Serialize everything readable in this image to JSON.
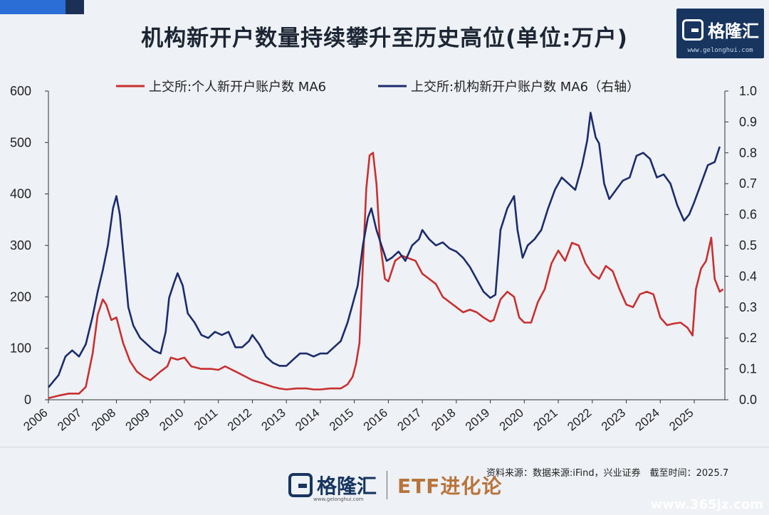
{
  "title": "机构新开户数量持续攀升至历史高位(单位:万户)",
  "brand": {
    "name": "格隆汇",
    "url": "www.gelonghui.com"
  },
  "footer": {
    "source": "资料来源：数据来源:iFind，兴业证券　截至时间：2025.7",
    "logo_name": "格隆汇",
    "logo_url": "www.gelonghui.com",
    "program": "ETF进化论",
    "watermark": "www.365jz.com"
  },
  "chart_data": {
    "type": "line",
    "x_categories": [
      "2006",
      "2007",
      "2008",
      "2009",
      "2010",
      "2011",
      "2012",
      "2013",
      "2014",
      "2015",
      "2016",
      "2017",
      "2018",
      "2019",
      "2020",
      "2021",
      "2022",
      "2023",
      "2024",
      "2025"
    ],
    "y_left": {
      "range": [
        0,
        600
      ],
      "ticks": [
        "0",
        "100",
        "200",
        "300",
        "400",
        "500",
        "600"
      ]
    },
    "y_right": {
      "range": [
        0,
        1.0
      ],
      "ticks": [
        "0.0",
        "0.1",
        "0.2",
        "0.3",
        "0.4",
        "0.5",
        "0.6",
        "0.7",
        "0.8",
        "0.9",
        "1.0"
      ]
    },
    "grid": false,
    "legend_position": "top",
    "colors": {
      "individual": "#c8302f",
      "institutional": "#1b2c6b"
    },
    "series": [
      {
        "name": "上交所:个人新开户账户数 MA6",
        "axis": "left",
        "points": [
          [
            2006.0,
            3
          ],
          [
            2006.3,
            8
          ],
          [
            2006.6,
            12
          ],
          [
            2006.9,
            12
          ],
          [
            2007.1,
            25
          ],
          [
            2007.3,
            90
          ],
          [
            2007.45,
            165
          ],
          [
            2007.6,
            195
          ],
          [
            2007.7,
            185
          ],
          [
            2007.85,
            155
          ],
          [
            2008.0,
            160
          ],
          [
            2008.2,
            110
          ],
          [
            2008.4,
            75
          ],
          [
            2008.6,
            55
          ],
          [
            2008.8,
            45
          ],
          [
            2009.0,
            38
          ],
          [
            2009.3,
            55
          ],
          [
            2009.5,
            65
          ],
          [
            2009.6,
            82
          ],
          [
            2009.8,
            78
          ],
          [
            2010.0,
            82
          ],
          [
            2010.2,
            65
          ],
          [
            2010.5,
            60
          ],
          [
            2010.8,
            60
          ],
          [
            2011.0,
            58
          ],
          [
            2011.2,
            65
          ],
          [
            2011.5,
            55
          ],
          [
            2011.8,
            45
          ],
          [
            2012.0,
            38
          ],
          [
            2012.3,
            32
          ],
          [
            2012.6,
            25
          ],
          [
            2012.8,
            22
          ],
          [
            2013.0,
            20
          ],
          [
            2013.3,
            22
          ],
          [
            2013.6,
            22
          ],
          [
            2013.8,
            20
          ],
          [
            2014.0,
            20
          ],
          [
            2014.3,
            22
          ],
          [
            2014.6,
            22
          ],
          [
            2014.8,
            30
          ],
          [
            2014.95,
            45
          ],
          [
            2015.05,
            70
          ],
          [
            2015.15,
            110
          ],
          [
            2015.25,
            260
          ],
          [
            2015.35,
            410
          ],
          [
            2015.45,
            475
          ],
          [
            2015.55,
            480
          ],
          [
            2015.65,
            420
          ],
          [
            2015.75,
            310
          ],
          [
            2015.9,
            235
          ],
          [
            2016.0,
            230
          ],
          [
            2016.2,
            270
          ],
          [
            2016.4,
            280
          ],
          [
            2016.6,
            275
          ],
          [
            2016.8,
            270
          ],
          [
            2017.0,
            245
          ],
          [
            2017.2,
            235
          ],
          [
            2017.4,
            225
          ],
          [
            2017.6,
            200
          ],
          [
            2017.8,
            190
          ],
          [
            2018.0,
            180
          ],
          [
            2018.2,
            170
          ],
          [
            2018.4,
            175
          ],
          [
            2018.6,
            170
          ],
          [
            2018.8,
            160
          ],
          [
            2019.0,
            152
          ],
          [
            2019.1,
            155
          ],
          [
            2019.3,
            195
          ],
          [
            2019.5,
            210
          ],
          [
            2019.7,
            200
          ],
          [
            2019.85,
            160
          ],
          [
            2020.0,
            150
          ],
          [
            2020.2,
            150
          ],
          [
            2020.4,
            190
          ],
          [
            2020.6,
            215
          ],
          [
            2020.8,
            265
          ],
          [
            2021.0,
            290
          ],
          [
            2021.2,
            270
          ],
          [
            2021.4,
            305
          ],
          [
            2021.6,
            300
          ],
          [
            2021.8,
            265
          ],
          [
            2022.0,
            245
          ],
          [
            2022.2,
            235
          ],
          [
            2022.4,
            260
          ],
          [
            2022.6,
            250
          ],
          [
            2022.8,
            215
          ],
          [
            2023.0,
            185
          ],
          [
            2023.2,
            180
          ],
          [
            2023.4,
            205
          ],
          [
            2023.6,
            210
          ],
          [
            2023.8,
            205
          ],
          [
            2024.0,
            160
          ],
          [
            2024.2,
            145
          ],
          [
            2024.4,
            148
          ],
          [
            2024.6,
            150
          ],
          [
            2024.8,
            140
          ],
          [
            2024.95,
            125
          ],
          [
            2025.05,
            215
          ],
          [
            2025.2,
            255
          ],
          [
            2025.35,
            270
          ],
          [
            2025.5,
            315
          ],
          [
            2025.6,
            235
          ],
          [
            2025.75,
            210
          ],
          [
            2025.85,
            215
          ]
        ]
      },
      {
        "name": "上交所:机构新开户账户数 MA6（右轴）",
        "axis": "right",
        "points": [
          [
            2006.0,
            0.04
          ],
          [
            2006.3,
            0.08
          ],
          [
            2006.5,
            0.14
          ],
          [
            2006.7,
            0.16
          ],
          [
            2006.9,
            0.14
          ],
          [
            2007.1,
            0.18
          ],
          [
            2007.3,
            0.27
          ],
          [
            2007.45,
            0.35
          ],
          [
            2007.6,
            0.42
          ],
          [
            2007.75,
            0.5
          ],
          [
            2007.9,
            0.62
          ],
          [
            2008.0,
            0.66
          ],
          [
            2008.1,
            0.6
          ],
          [
            2008.2,
            0.48
          ],
          [
            2008.35,
            0.3
          ],
          [
            2008.5,
            0.24
          ],
          [
            2008.7,
            0.2
          ],
          [
            2008.9,
            0.18
          ],
          [
            2009.1,
            0.16
          ],
          [
            2009.3,
            0.15
          ],
          [
            2009.45,
            0.22
          ],
          [
            2009.55,
            0.33
          ],
          [
            2009.7,
            0.38
          ],
          [
            2009.8,
            0.41
          ],
          [
            2009.95,
            0.37
          ],
          [
            2010.1,
            0.28
          ],
          [
            2010.3,
            0.25
          ],
          [
            2010.5,
            0.21
          ],
          [
            2010.7,
            0.2
          ],
          [
            2010.9,
            0.22
          ],
          [
            2011.1,
            0.21
          ],
          [
            2011.3,
            0.22
          ],
          [
            2011.5,
            0.17
          ],
          [
            2011.7,
            0.17
          ],
          [
            2011.9,
            0.19
          ],
          [
            2012.0,
            0.21
          ],
          [
            2012.2,
            0.18
          ],
          [
            2012.4,
            0.14
          ],
          [
            2012.6,
            0.12
          ],
          [
            2012.8,
            0.11
          ],
          [
            2013.0,
            0.11
          ],
          [
            2013.2,
            0.13
          ],
          [
            2013.4,
            0.15
          ],
          [
            2013.6,
            0.15
          ],
          [
            2013.8,
            0.14
          ],
          [
            2014.0,
            0.15
          ],
          [
            2014.2,
            0.15
          ],
          [
            2014.4,
            0.17
          ],
          [
            2014.6,
            0.19
          ],
          [
            2014.8,
            0.25
          ],
          [
            2014.95,
            0.31
          ],
          [
            2015.1,
            0.37
          ],
          [
            2015.25,
            0.5
          ],
          [
            2015.4,
            0.59
          ],
          [
            2015.5,
            0.62
          ],
          [
            2015.65,
            0.55
          ],
          [
            2015.8,
            0.5
          ],
          [
            2015.95,
            0.45
          ],
          [
            2016.1,
            0.46
          ],
          [
            2016.3,
            0.48
          ],
          [
            2016.5,
            0.45
          ],
          [
            2016.7,
            0.5
          ],
          [
            2016.9,
            0.52
          ],
          [
            2017.0,
            0.55
          ],
          [
            2017.2,
            0.52
          ],
          [
            2017.4,
            0.5
          ],
          [
            2017.6,
            0.51
          ],
          [
            2017.8,
            0.49
          ],
          [
            2018.0,
            0.48
          ],
          [
            2018.2,
            0.46
          ],
          [
            2018.4,
            0.43
          ],
          [
            2018.6,
            0.39
          ],
          [
            2018.8,
            0.35
          ],
          [
            2019.0,
            0.33
          ],
          [
            2019.15,
            0.34
          ],
          [
            2019.3,
            0.55
          ],
          [
            2019.5,
            0.62
          ],
          [
            2019.7,
            0.66
          ],
          [
            2019.8,
            0.55
          ],
          [
            2019.95,
            0.46
          ],
          [
            2020.1,
            0.5
          ],
          [
            2020.3,
            0.52
          ],
          [
            2020.5,
            0.55
          ],
          [
            2020.7,
            0.62
          ],
          [
            2020.9,
            0.68
          ],
          [
            2021.1,
            0.72
          ],
          [
            2021.3,
            0.7
          ],
          [
            2021.5,
            0.68
          ],
          [
            2021.7,
            0.76
          ],
          [
            2021.85,
            0.84
          ],
          [
            2021.95,
            0.93
          ],
          [
            2022.1,
            0.85
          ],
          [
            2022.2,
            0.83
          ],
          [
            2022.35,
            0.7
          ],
          [
            2022.5,
            0.65
          ],
          [
            2022.7,
            0.68
          ],
          [
            2022.9,
            0.71
          ],
          [
            2023.1,
            0.72
          ],
          [
            2023.3,
            0.79
          ],
          [
            2023.5,
            0.8
          ],
          [
            2023.7,
            0.78
          ],
          [
            2023.9,
            0.72
          ],
          [
            2024.1,
            0.73
          ],
          [
            2024.3,
            0.7
          ],
          [
            2024.5,
            0.63
          ],
          [
            2024.7,
            0.58
          ],
          [
            2024.85,
            0.6
          ],
          [
            2025.0,
            0.64
          ],
          [
            2025.2,
            0.7
          ],
          [
            2025.4,
            0.76
          ],
          [
            2025.6,
            0.77
          ],
          [
            2025.75,
            0.82
          ]
        ]
      }
    ]
  }
}
